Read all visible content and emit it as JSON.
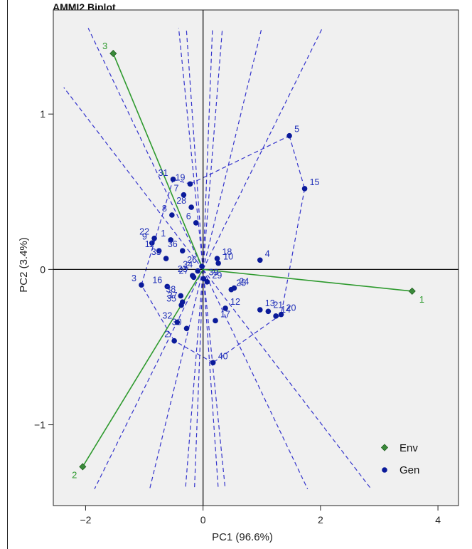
{
  "title": "AMMI2 Biplot",
  "chart_data": {
    "type": "scatter",
    "title": "AMMI2 Biplot",
    "xlabel": "PC1 (96.6%)",
    "ylabel": "PC2 (3.4%)",
    "xlim": [
      -2.55,
      4.35
    ],
    "ylim": [
      -1.52,
      1.67
    ],
    "xticks": [
      -2,
      0,
      2,
      4
    ],
    "yticks": [
      -1,
      0,
      1
    ],
    "grid": false,
    "legend": {
      "position": "bottom-right",
      "entries": [
        "Env",
        "Gen"
      ]
    },
    "colors": {
      "env": "#2e9a2e",
      "env_marker": "#3a8a3a",
      "gen": "#0a1a9a",
      "dashed": "#3333cc",
      "panel": "#f0f0f0"
    },
    "environments": [
      {
        "label": "1",
        "x": 3.56,
        "y": -0.14
      },
      {
        "label": "2",
        "x": -2.05,
        "y": -1.27
      },
      {
        "label": "3",
        "x": -1.53,
        "y": 1.39
      }
    ],
    "genotypes": [
      {
        "label": "1",
        "x": -0.55,
        "y": 0.19
      },
      {
        "label": "2",
        "x": -0.49,
        "y": -0.46
      },
      {
        "label": "3",
        "x": -1.05,
        "y": -0.1
      },
      {
        "label": "4",
        "x": 0.97,
        "y": 0.06
      },
      {
        "label": "5",
        "x": 1.47,
        "y": 0.86
      },
      {
        "label": "6",
        "x": -0.12,
        "y": 0.3
      },
      {
        "label": "7",
        "x": -0.33,
        "y": 0.48
      },
      {
        "label": "8",
        "x": -0.53,
        "y": 0.35
      },
      {
        "label": "9",
        "x": -0.87,
        "y": 0.17
      },
      {
        "label": "10",
        "x": 0.26,
        "y": 0.04
      },
      {
        "label": "11",
        "x": -0.75,
        "y": 0.12
      },
      {
        "label": "12",
        "x": 0.38,
        "y": -0.25
      },
      {
        "label": "13",
        "x": 0.97,
        "y": -0.26
      },
      {
        "label": "14",
        "x": 1.24,
        "y": -0.3
      },
      {
        "label": "15",
        "x": 1.73,
        "y": 0.52
      },
      {
        "label": "16",
        "x": -0.61,
        "y": -0.11
      },
      {
        "label": "17",
        "x": 0.21,
        "y": -0.33
      },
      {
        "label": "18",
        "x": 0.24,
        "y": 0.07
      },
      {
        "label": "19",
        "x": -0.22,
        "y": 0.55
      },
      {
        "label": "20",
        "x": 1.33,
        "y": -0.29
      },
      {
        "label": "21",
        "x": 1.11,
        "y": -0.27
      },
      {
        "label": "22",
        "x": -0.83,
        "y": 0.2
      },
      {
        "label": "23",
        "x": -0.18,
        "y": -0.04
      },
      {
        "label": "24",
        "x": 0.53,
        "y": -0.12
      },
      {
        "label": "25",
        "x": 0.48,
        "y": -0.13
      },
      {
        "label": "26",
        "x": -0.02,
        "y": 0.02
      },
      {
        "label": "27",
        "x": -0.16,
        "y": -0.05
      },
      {
        "label": "28",
        "x": -0.2,
        "y": 0.4
      },
      {
        "label": "29",
        "x": 0.07,
        "y": -0.08
      },
      {
        "label": "30",
        "x": -0.28,
        "y": -0.38
      },
      {
        "label": "31",
        "x": -0.51,
        "y": 0.58
      },
      {
        "label": "32",
        "x": -0.44,
        "y": -0.34
      },
      {
        "label": "33",
        "x": -0.63,
        "y": 0.07
      },
      {
        "label": "34",
        "x": -0.09,
        "y": -0.01
      },
      {
        "label": "35",
        "x": -0.37,
        "y": -0.23
      },
      {
        "label": "36",
        "x": -0.35,
        "y": 0.12
      },
      {
        "label": "37",
        "x": -0.35,
        "y": -0.21
      },
      {
        "label": "38",
        "x": -0.38,
        "y": -0.17
      },
      {
        "label": "39",
        "x": 0.01,
        "y": -0.06
      },
      {
        "label": "40",
        "x": 0.17,
        "y": -0.6
      }
    ],
    "hull_order": [
      "5",
      "15",
      "20",
      "40",
      "2",
      "3",
      "31",
      "19"
    ]
  }
}
